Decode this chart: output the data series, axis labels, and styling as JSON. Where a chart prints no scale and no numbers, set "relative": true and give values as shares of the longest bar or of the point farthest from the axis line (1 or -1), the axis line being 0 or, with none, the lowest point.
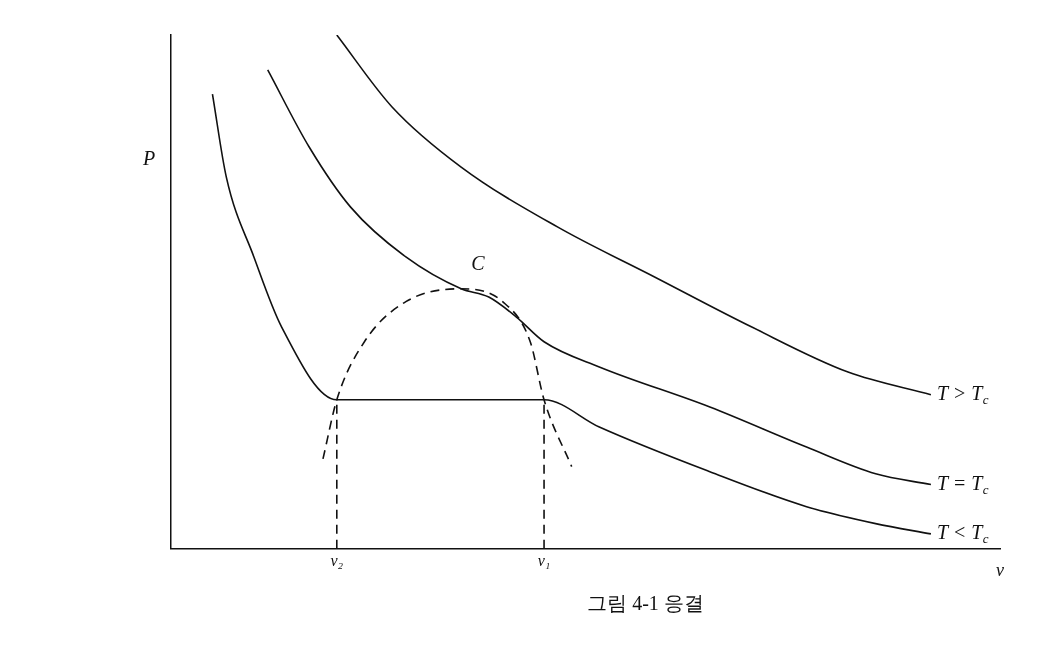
{
  "chart_data": {
    "type": "line",
    "title": "그림 4-1 응결",
    "xlabel": "v",
    "ylabel": "P",
    "relative": true,
    "legend": false,
    "marker": "none",
    "categories": [
      null,
      null,
      null,
      null,
      null,
      null,
      null,
      null,
      null,
      null,
      null,
      null,
      "v₂",
      null,
      null,
      null,
      null,
      null,
      null,
      null,
      null,
      null,
      null,
      null,
      null,
      null,
      null,
      "v₁",
      null,
      null,
      null,
      null,
      null,
      null,
      null,
      null,
      null,
      null,
      null,
      null,
      null,
      null,
      null,
      null,
      null,
      null,
      null,
      null,
      null,
      null,
      null,
      null,
      null,
      null,
      null,
      null,
      null,
      null,
      null,
      null,
      null
    ],
    "annotations": [
      {
        "text": "C",
        "y": 0.506
      }
    ],
    "ref_lines": [
      {
        "axis": "x",
        "value": "v₂",
        "line_style": "dashed"
      },
      {
        "axis": "x",
        "value": "v₁",
        "line_style": "dashed"
      }
    ],
    "series": [
      {
        "name": "T > T$_{c}$",
        "color": "#111111",
        "values": [
          null,
          null,
          null,
          null,
          null,
          null,
          null,
          null,
          null,
          null,
          null,
          null,
          1.0,
          null,
          null,
          null,
          0.86,
          null,
          null,
          null,
          null,
          0.743,
          null,
          null,
          null,
          null,
          null,
          null,
          0.626,
          null,
          null,
          null,
          null,
          null,
          null,
          0.529,
          null,
          null,
          null,
          null,
          null,
          null,
          0.432,
          null,
          null,
          null,
          null,
          null,
          null,
          0.344,
          null,
          null,
          null,
          null,
          null,
          0.3,
          null,
          null,
          null,
          null,
          null
        ]
      },
      {
        "name": "T = T$_{c}$",
        "color": "#111111",
        "values": [
          null,
          null,
          null,
          null,
          null,
          null,
          null,
          0.932,
          null,
          null,
          0.782,
          null,
          null,
          0.665,
          null,
          null,
          null,
          0.568,
          null,
          null,
          null,
          0.506,
          null,
          0.49,
          null,
          0.451,
          null,
          0.403,
          null,
          null,
          null,
          0.354,
          null,
          null,
          null,
          null,
          null,
          null,
          null,
          0.276,
          null,
          null,
          null,
          null,
          null,
          null,
          0.198,
          null,
          null,
          null,
          null,
          0.146,
          null,
          null,
          null,
          0.125,
          null,
          null,
          null,
          null,
          null
        ]
      },
      {
        "name": "T < T$_{c}$",
        "color": "#111111",
        "values": [
          null,
          null,
          null,
          0.885,
          0.724,
          null,
          0.568,
          null,
          0.432,
          null,
          null,
          null,
          0.29,
          null,
          null,
          null,
          null,
          null,
          null,
          null,
          null,
          null,
          null,
          null,
          null,
          null,
          null,
          0.29,
          null,
          null,
          null,
          0.237,
          null,
          null,
          null,
          null,
          null,
          null,
          null,
          0.15,
          null,
          null,
          null,
          null,
          null,
          null,
          0.082,
          null,
          null,
          null,
          null,
          0.049,
          null,
          null,
          null,
          0.029,
          null,
          null,
          null,
          null,
          null
        ]
      },
      {
        "color": "#111111",
        "line_style": "dashed",
        "values": [
          null,
          null,
          null,
          null,
          null,
          null,
          null,
          null,
          null,
          null,
          null,
          0.175,
          0.29,
          null,
          0.403,
          null,
          null,
          0.481,
          null,
          null,
          null,
          0.506,
          null,
          null,
          0.481,
          null,
          0.403,
          0.29,
          null,
          0.16,
          null,
          null,
          null,
          null,
          null,
          null,
          null,
          null,
          null,
          null,
          null,
          null,
          null,
          null,
          null,
          null,
          null,
          null,
          null,
          null,
          null,
          null,
          null,
          null,
          null,
          null,
          null,
          null,
          null,
          null,
          null
        ]
      }
    ]
  }
}
